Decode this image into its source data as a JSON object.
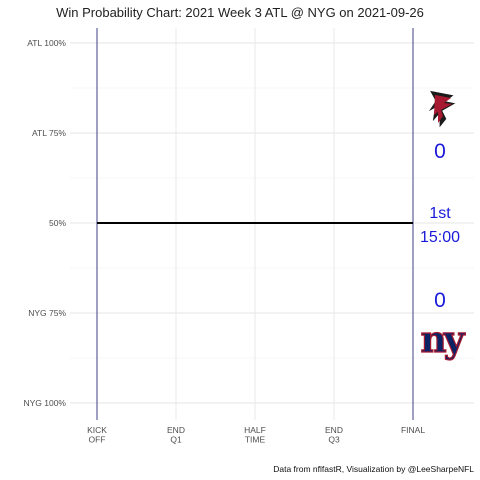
{
  "chart_data": {
    "type": "line",
    "title": "Win Probability Chart: 2021 Week 3 ATL @ NYG on 2021-09-26",
    "caption": "Data from nflfastR, Visualization by @LeeSharpeNFL",
    "y_tick_labels": [
      "ATL 100%",
      "ATL 75%",
      "50%",
      "NYG 75%",
      "NYG 100%"
    ],
    "y_tick_values": [
      1.0,
      0.75,
      0.5,
      0.25,
      0.0
    ],
    "ylim": [
      0.0,
      1.0
    ],
    "x_tick_labels": [
      [
        "KICK",
        "OFF"
      ],
      [
        "END",
        "Q1"
      ],
      [
        "HALF",
        "TIME"
      ],
      [
        "END",
        "Q3"
      ],
      [
        "FINAL"
      ]
    ],
    "x_tick_values": [
      0,
      15,
      30,
      45,
      60
    ],
    "xlim": [
      0,
      60
    ],
    "grid": true,
    "series": [
      {
        "x": [
          0,
          60
        ],
        "values": [
          0.5,
          0.5
        ],
        "color": "#000000"
      }
    ],
    "away": {
      "team": "ATL",
      "score": "0",
      "color": "#a71930"
    },
    "home": {
      "team": "NYG",
      "score": "0",
      "color": "#0b2265"
    },
    "game_state": {
      "quarter": "1st",
      "clock": "15:00"
    },
    "accent_color": "#1a1adb",
    "boundary_color": "#2b2b7a"
  }
}
